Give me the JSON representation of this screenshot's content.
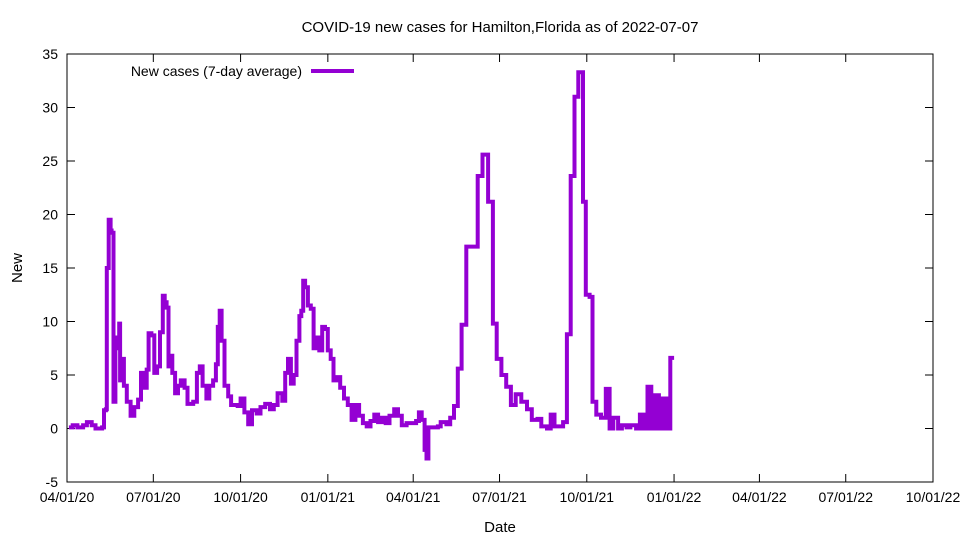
{
  "chart_data": {
    "type": "line",
    "title": "COVID-19 new cases for Hamilton,Florida as of 2022-07-07",
    "xlabel": "Date",
    "ylabel": "New",
    "xlim": [
      "2020-04-01",
      "2022-10-01"
    ],
    "ylim": [
      -5,
      35
    ],
    "x_ticks": [
      {
        "date": "2020-04-01",
        "label": "04/01/20"
      },
      {
        "date": "2020-07-01",
        "label": "07/01/20"
      },
      {
        "date": "2020-10-01",
        "label": "10/01/20"
      },
      {
        "date": "2021-01-01",
        "label": "01/01/21"
      },
      {
        "date": "2021-04-01",
        "label": "04/01/21"
      },
      {
        "date": "2021-07-01",
        "label": "07/01/21"
      },
      {
        "date": "2021-10-01",
        "label": "10/01/21"
      },
      {
        "date": "2022-01-01",
        "label": "01/01/22"
      },
      {
        "date": "2022-04-01",
        "label": "04/01/22"
      },
      {
        "date": "2022-07-01",
        "label": "07/01/22"
      },
      {
        "date": "2022-10-01",
        "label": "10/01/22"
      }
    ],
    "y_ticks": [
      -5,
      0,
      5,
      10,
      15,
      20,
      25,
      30,
      35
    ],
    "grid": false,
    "legend_position": "top-left",
    "series": [
      {
        "name": "New cases (7-day average)",
        "color": "#9400d3",
        "points": [
          [
            "2020-04-03",
            0.1
          ],
          [
            "2020-04-07",
            0.3
          ],
          [
            "2020-04-12",
            0.1
          ],
          [
            "2020-04-18",
            0.3
          ],
          [
            "2020-04-22",
            0.6
          ],
          [
            "2020-04-27",
            0.3
          ],
          [
            "2020-05-01",
            0.0
          ],
          [
            "2020-05-08",
            0.1
          ],
          [
            "2020-05-10",
            1.7
          ],
          [
            "2020-05-12",
            1.8
          ],
          [
            "2020-05-13",
            15.0
          ],
          [
            "2020-05-15",
            19.5
          ],
          [
            "2020-05-17",
            18.5
          ],
          [
            "2020-05-18",
            18.3
          ],
          [
            "2020-05-20",
            2.5
          ],
          [
            "2020-05-22",
            8.5
          ],
          [
            "2020-05-24",
            7.5
          ],
          [
            "2020-05-26",
            9.8
          ],
          [
            "2020-05-27",
            4.5
          ],
          [
            "2020-05-29",
            6.5
          ],
          [
            "2020-05-31",
            4.0
          ],
          [
            "2020-06-03",
            2.5
          ],
          [
            "2020-06-07",
            1.2
          ],
          [
            "2020-06-11",
            2.0
          ],
          [
            "2020-06-15",
            2.7
          ],
          [
            "2020-06-18",
            5.2
          ],
          [
            "2020-06-21",
            3.8
          ],
          [
            "2020-06-24",
            5.5
          ],
          [
            "2020-06-26",
            8.9
          ],
          [
            "2020-06-29",
            8.7
          ],
          [
            "2020-07-02",
            5.2
          ],
          [
            "2020-07-05",
            5.8
          ],
          [
            "2020-07-08",
            9.0
          ],
          [
            "2020-07-11",
            12.4
          ],
          [
            "2020-07-13",
            11.8
          ],
          [
            "2020-07-15",
            11.3
          ],
          [
            "2020-07-17",
            5.8
          ],
          [
            "2020-07-19",
            6.8
          ],
          [
            "2020-07-21",
            5.2
          ],
          [
            "2020-07-24",
            3.3
          ],
          [
            "2020-07-27",
            4.0
          ],
          [
            "2020-07-30",
            4.5
          ],
          [
            "2020-08-03",
            3.8
          ],
          [
            "2020-08-06",
            2.3
          ],
          [
            "2020-08-12",
            2.5
          ],
          [
            "2020-08-16",
            5.2
          ],
          [
            "2020-08-19",
            5.8
          ],
          [
            "2020-08-22",
            4.0
          ],
          [
            "2020-08-26",
            2.8
          ],
          [
            "2020-08-29",
            4.0
          ],
          [
            "2020-09-02",
            4.5
          ],
          [
            "2020-09-05",
            6.0
          ],
          [
            "2020-09-07",
            9.5
          ],
          [
            "2020-09-09",
            11.0
          ],
          [
            "2020-09-11",
            8.2
          ],
          [
            "2020-09-14",
            4.0
          ],
          [
            "2020-09-18",
            3.0
          ],
          [
            "2020-09-21",
            2.2
          ],
          [
            "2020-09-28",
            2.1
          ],
          [
            "2020-10-01",
            2.8
          ],
          [
            "2020-10-05",
            1.5
          ],
          [
            "2020-10-09",
            0.4
          ],
          [
            "2020-10-13",
            1.7
          ],
          [
            "2020-10-18",
            1.4
          ],
          [
            "2020-10-22",
            2.0
          ],
          [
            "2020-10-27",
            2.3
          ],
          [
            "2020-11-01",
            1.8
          ],
          [
            "2020-11-05",
            2.2
          ],
          [
            "2020-11-09",
            3.3
          ],
          [
            "2020-11-14",
            2.6
          ],
          [
            "2020-11-17",
            5.2
          ],
          [
            "2020-11-20",
            6.5
          ],
          [
            "2020-11-23",
            4.2
          ],
          [
            "2020-11-26",
            5.0
          ],
          [
            "2020-11-29",
            8.2
          ],
          [
            "2020-12-02",
            10.5
          ],
          [
            "2020-12-04",
            11.0
          ],
          [
            "2020-12-06",
            13.8
          ],
          [
            "2020-12-08",
            13.2
          ],
          [
            "2020-12-11",
            11.5
          ],
          [
            "2020-12-14",
            11.2
          ],
          [
            "2020-12-17",
            7.5
          ],
          [
            "2020-12-20",
            8.5
          ],
          [
            "2020-12-23",
            7.3
          ],
          [
            "2020-12-26",
            9.5
          ],
          [
            "2020-12-29",
            9.3
          ],
          [
            "2021-01-01",
            7.3
          ],
          [
            "2021-01-04",
            6.5
          ],
          [
            "2021-01-07",
            4.5
          ],
          [
            "2021-01-11",
            4.8
          ],
          [
            "2021-01-14",
            3.8
          ],
          [
            "2021-01-18",
            2.8
          ],
          [
            "2021-01-22",
            2.2
          ],
          [
            "2021-01-26",
            0.8
          ],
          [
            "2021-01-30",
            2.2
          ],
          [
            "2021-02-03",
            1.2
          ],
          [
            "2021-02-07",
            0.5
          ],
          [
            "2021-02-11",
            0.2
          ],
          [
            "2021-02-15",
            0.7
          ],
          [
            "2021-02-19",
            1.3
          ],
          [
            "2021-02-23",
            0.6
          ],
          [
            "2021-02-27",
            1.0
          ],
          [
            "2021-03-03",
            0.5
          ],
          [
            "2021-03-07",
            1.2
          ],
          [
            "2021-03-12",
            1.8
          ],
          [
            "2021-03-16",
            1.2
          ],
          [
            "2021-03-20",
            0.3
          ],
          [
            "2021-03-25",
            0.5
          ],
          [
            "2021-03-30",
            0.5
          ],
          [
            "2021-04-04",
            0.7
          ],
          [
            "2021-04-07",
            1.5
          ],
          [
            "2021-04-10",
            0.8
          ],
          [
            "2021-04-13",
            -2.0
          ],
          [
            "2021-04-15",
            -2.8
          ],
          [
            "2021-04-17",
            0.1
          ],
          [
            "2021-04-27",
            0.2
          ],
          [
            "2021-04-30",
            0.6
          ],
          [
            "2021-05-06",
            0.4
          ],
          [
            "2021-05-10",
            1.0
          ],
          [
            "2021-05-14",
            2.1
          ],
          [
            "2021-05-18",
            5.6
          ],
          [
            "2021-05-22",
            9.7
          ],
          [
            "2021-05-27",
            17.0
          ],
          [
            "2021-06-08",
            23.6
          ],
          [
            "2021-06-13",
            25.6
          ],
          [
            "2021-06-19",
            21.2
          ],
          [
            "2021-06-24",
            9.8
          ],
          [
            "2021-06-28",
            6.5
          ],
          [
            "2021-07-03",
            5.0
          ],
          [
            "2021-07-08",
            3.9
          ],
          [
            "2021-07-13",
            2.2
          ],
          [
            "2021-07-18",
            3.2
          ],
          [
            "2021-07-24",
            2.5
          ],
          [
            "2021-07-30",
            1.8
          ],
          [
            "2021-08-04",
            0.8
          ],
          [
            "2021-08-10",
            0.9
          ],
          [
            "2021-08-14",
            0.2
          ],
          [
            "2021-08-20",
            0.0
          ],
          [
            "2021-08-24",
            1.3
          ],
          [
            "2021-08-28",
            0.2
          ],
          [
            "2021-09-06",
            0.6
          ],
          [
            "2021-09-10",
            8.8
          ],
          [
            "2021-09-14",
            23.6
          ],
          [
            "2021-09-18",
            31.0
          ],
          [
            "2021-09-22",
            33.3
          ],
          [
            "2021-09-27",
            21.2
          ],
          [
            "2021-09-30",
            12.5
          ],
          [
            "2021-10-04",
            12.3
          ],
          [
            "2021-10-07",
            2.5
          ],
          [
            "2021-10-11",
            1.3
          ],
          [
            "2021-10-16",
            1.0
          ],
          [
            "2021-10-21",
            3.7
          ],
          [
            "2021-10-25",
            0.0
          ],
          [
            "2021-10-29",
            1.0
          ],
          [
            "2021-11-03",
            0.0
          ],
          [
            "2021-11-07",
            0.3
          ],
          [
            "2021-11-12",
            0.1
          ],
          [
            "2021-11-16",
            0.3
          ],
          [
            "2021-11-22",
            0.0
          ],
          [
            "2021-11-26",
            1.3
          ],
          [
            "2021-11-30",
            0.0
          ],
          [
            "2021-12-04",
            3.9
          ],
          [
            "2021-12-08",
            0.0
          ],
          [
            "2021-12-12",
            3.1
          ],
          [
            "2021-12-16",
            0.0
          ],
          [
            "2021-12-20",
            2.8
          ],
          [
            "2021-12-24",
            0.0
          ],
          [
            "2021-12-28",
            6.6
          ],
          [
            "2022-01-01",
            6.6
          ]
        ]
      }
    ]
  }
}
